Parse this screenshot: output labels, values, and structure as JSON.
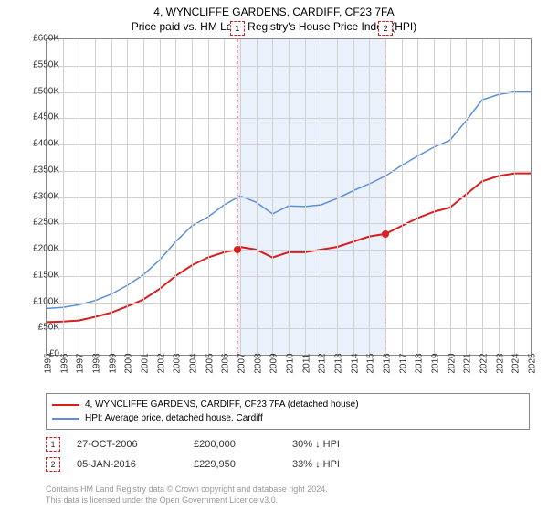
{
  "title_line1": "4, WYNCLIFFE GARDENS, CARDIFF, CF23 7FA",
  "title_line2": "Price paid vs. HM Land Registry's House Price Index (HPI)",
  "chart": {
    "type": "line",
    "background_color": "#ffffff",
    "grid_color": "#d0d0d0",
    "border_color": "#888888",
    "y": {
      "min": 0,
      "max": 600000,
      "step": 50000,
      "labels": [
        "£0",
        "£50K",
        "£100K",
        "£150K",
        "£200K",
        "£250K",
        "£300K",
        "£350K",
        "£400K",
        "£450K",
        "£500K",
        "£550K",
        "£600K"
      ],
      "label_fontsize": 10
    },
    "x": {
      "min": 1995,
      "max": 2025,
      "step": 1,
      "labels": [
        "1995",
        "1996",
        "1997",
        "1998",
        "1999",
        "2000",
        "2001",
        "2002",
        "2003",
        "2004",
        "2005",
        "2006",
        "2007",
        "2008",
        "2009",
        "2010",
        "2011",
        "2012",
        "2013",
        "2014",
        "2015",
        "2016",
        "2017",
        "2018",
        "2019",
        "2020",
        "2021",
        "2022",
        "2023",
        "2024",
        "2025"
      ],
      "label_fontsize": 10
    },
    "shade_band": {
      "x_from": 2006.82,
      "x_to": 2016.01,
      "color": "#eaf1fb"
    },
    "series": [
      {
        "name": "property",
        "label": "4, WYNCLIFFE GARDENS, CARDIFF, CF23 7FA (detached house)",
        "color": "#d81e1e",
        "line_width": 2,
        "points": [
          [
            1995,
            62000
          ],
          [
            1996,
            63000
          ],
          [
            1997,
            65000
          ],
          [
            1998,
            72000
          ],
          [
            1999,
            80000
          ],
          [
            2000,
            92000
          ],
          [
            2001,
            105000
          ],
          [
            2002,
            125000
          ],
          [
            2003,
            150000
          ],
          [
            2004,
            170000
          ],
          [
            2005,
            185000
          ],
          [
            2006,
            195000
          ],
          [
            2006.82,
            200000
          ],
          [
            2007,
            205000
          ],
          [
            2008,
            200000
          ],
          [
            2009,
            185000
          ],
          [
            2010,
            195000
          ],
          [
            2011,
            195000
          ],
          [
            2012,
            200000
          ],
          [
            2013,
            205000
          ],
          [
            2014,
            215000
          ],
          [
            2015,
            225000
          ],
          [
            2016.01,
            229950
          ],
          [
            2017,
            245000
          ],
          [
            2018,
            260000
          ],
          [
            2019,
            272000
          ],
          [
            2020,
            280000
          ],
          [
            2021,
            305000
          ],
          [
            2022,
            330000
          ],
          [
            2023,
            340000
          ],
          [
            2024,
            345000
          ],
          [
            2025,
            345000
          ]
        ]
      },
      {
        "name": "hpi",
        "label": "HPI: Average price, detached house, Cardiff",
        "color": "#5b8fd6",
        "line_width": 1.5,
        "points": [
          [
            1995,
            88000
          ],
          [
            1996,
            90000
          ],
          [
            1997,
            95000
          ],
          [
            1998,
            103000
          ],
          [
            1999,
            115000
          ],
          [
            2000,
            132000
          ],
          [
            2001,
            152000
          ],
          [
            2002,
            180000
          ],
          [
            2003,
            215000
          ],
          [
            2004,
            245000
          ],
          [
            2005,
            262000
          ],
          [
            2006,
            285000
          ],
          [
            2007,
            302000
          ],
          [
            2008,
            290000
          ],
          [
            2009,
            268000
          ],
          [
            2010,
            283000
          ],
          [
            2011,
            282000
          ],
          [
            2012,
            285000
          ],
          [
            2013,
            297000
          ],
          [
            2014,
            312000
          ],
          [
            2015,
            325000
          ],
          [
            2016,
            340000
          ],
          [
            2017,
            360000
          ],
          [
            2018,
            378000
          ],
          [
            2019,
            395000
          ],
          [
            2020,
            408000
          ],
          [
            2021,
            445000
          ],
          [
            2022,
            485000
          ],
          [
            2023,
            495000
          ],
          [
            2024,
            500000
          ],
          [
            2025,
            500000
          ]
        ]
      }
    ],
    "sales_markers": [
      {
        "num": "1",
        "x": 2006.82,
        "y": 200000,
        "color": "#d81e1e"
      },
      {
        "num": "2",
        "x": 2016.01,
        "y": 229950,
        "color": "#d81e1e"
      }
    ]
  },
  "legend": {
    "items": [
      {
        "color": "#d81e1e",
        "label": "4, WYNCLIFFE GARDENS, CARDIFF, CF23 7FA (detached house)"
      },
      {
        "color": "#5b8fd6",
        "label": "HPI: Average price, detached house, Cardiff"
      }
    ]
  },
  "sales_table": [
    {
      "num": "1",
      "color": "#d81e1e",
      "date": "27-OCT-2006",
      "price": "£200,000",
      "delta": "30%  ↓  HPI"
    },
    {
      "num": "2",
      "color": "#d81e1e",
      "date": "05-JAN-2016",
      "price": "£229,950",
      "delta": "33%  ↓  HPI"
    }
  ],
  "footer_line1": "Contains HM Land Registry data © Crown copyright and database right 2024.",
  "footer_line2": "This data is licensed under the Open Government Licence v3.0."
}
